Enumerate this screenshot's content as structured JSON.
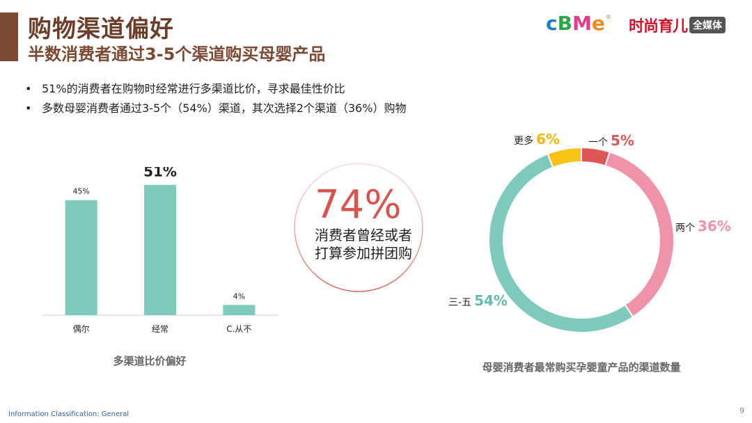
{
  "header": {
    "title": "购物渠道偏好",
    "subtitle": "半数消费者通过3-5个渠道购买母婴产品"
  },
  "logos": {
    "cbme_letters": [
      "c",
      "B",
      "M",
      "e"
    ],
    "cbme_colors": [
      "#1a7fc4",
      "#29a845",
      "#e43b8a",
      "#f08a1c"
    ],
    "cbme_mark": "®",
    "fashion_main": "时尚育儿",
    "fashion_tag": "全媒体"
  },
  "bullets": [
    "51%的消费者在购物时经常进行多渠道比价，寻求最佳性价比",
    "多数母婴消费者通过3-5个（54%）渠道，其次选择2个渠道（36%）购物"
  ],
  "bullet_marker": "•",
  "callout": {
    "value": "74%",
    "line1": "消费者曾经或者",
    "line2": "打算参加拼团购"
  },
  "chart_data": [
    {
      "type": "bar",
      "title": "多渠道比价偏好",
      "categories": [
        "偶尔",
        "经常",
        "C.从不"
      ],
      "values": [
        45,
        51,
        4
      ],
      "data_labels": [
        "45%",
        "51%",
        "4%"
      ],
      "highlight_index": 1,
      "ylim": [
        0,
        60
      ],
      "color": "#7ecabd"
    },
    {
      "type": "pie",
      "variant": "donut",
      "title": "母婴消费者最常购买孕婴童产品的渠道数量",
      "slices": [
        {
          "label": "一个",
          "value": 5,
          "display": "5%",
          "color": "#e05555",
          "value_color": "#e05555"
        },
        {
          "label": "两个",
          "value": 36,
          "display": "36%",
          "color": "#ef93a9",
          "value_color": "#ef93a9"
        },
        {
          "label": "三-五",
          "value": 54,
          "display": "54%",
          "color": "#7ecabd",
          "value_color": "#5fbcae"
        },
        {
          "label": "更多",
          "value": 6,
          "display": "6%",
          "color": "#f9c217",
          "value_color": "#f5b800"
        }
      ]
    }
  ],
  "footer": {
    "classification": "Information Classification: General",
    "page_number": "9"
  }
}
